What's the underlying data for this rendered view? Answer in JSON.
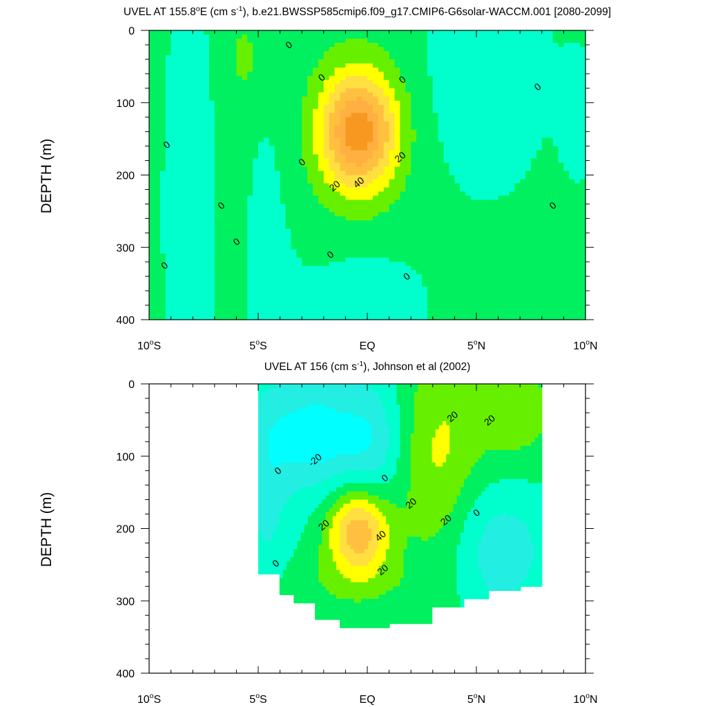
{
  "chart_data": [
    {
      "type": "contour",
      "title": "UVEL AT 155.8°E (cm s-1), b.e21.BWSSP585cmip6.f09_g17.CMIP6-G6solar-WACCM.001 [2080-2099]",
      "title_parts": [
        "UVEL AT 155.8",
        "o",
        "E (cm s",
        "-1",
        "), b.e21.BWSSP585cmip6.f09_g17.CMIP6-G6solar-WACCM.001 [2080-2099]"
      ],
      "ylabel": "DEPTH (m)",
      "xlabel": "",
      "xlim": [
        -10,
        10
      ],
      "ylim": [
        0,
        400
      ],
      "y_inverted": true,
      "x_ticks": [
        -10,
        -5,
        0,
        5,
        10
      ],
      "x_tick_labels": [
        "10°S",
        "5°S",
        "EQ",
        "5°N",
        "10°N"
      ],
      "y_ticks": [
        0,
        100,
        200,
        300,
        400
      ],
      "y_tick_labels": [
        "0",
        "100",
        "200",
        "300",
        "400"
      ],
      "contour_interval": 10,
      "core": {
        "lat": -0.4,
        "depth": 140,
        "max_speed": 60
      },
      "contour_labels": [
        {
          "text": "0",
          "lat": -3.6,
          "depth": 20
        },
        {
          "text": "0",
          "lat": -2.1,
          "depth": 65
        },
        {
          "text": "0",
          "lat": 1.6,
          "depth": 68
        },
        {
          "text": "0",
          "lat": 7.8,
          "depth": 78
        },
        {
          "text": "0",
          "lat": -9.2,
          "depth": 158
        },
        {
          "text": "0",
          "lat": -3.0,
          "depth": 182
        },
        {
          "text": "0",
          "lat": -6.7,
          "depth": 242
        },
        {
          "text": "0",
          "lat": 8.5,
          "depth": 242
        },
        {
          "text": "0",
          "lat": -6.0,
          "depth": 292
        },
        {
          "text": "0",
          "lat": -9.3,
          "depth": 325
        },
        {
          "text": "0",
          "lat": -1.7,
          "depth": 310
        },
        {
          "text": "0",
          "lat": 1.8,
          "depth": 340
        },
        {
          "text": "20",
          "lat": 1.5,
          "depth": 175
        },
        {
          "text": "20",
          "lat": -1.5,
          "depth": 215
        },
        {
          "text": "40",
          "lat": -0.4,
          "depth": 210
        }
      ]
    },
    {
      "type": "contour",
      "title": "UVEL AT 156 (cm s-1), Johnson et al (2002)",
      "title_parts": [
        "UVEL AT 156 (cm s",
        "-1",
        "), Johnson et al (2002)"
      ],
      "ylabel": "DEPTH (m)",
      "xlabel": "",
      "xlim": [
        -10,
        10
      ],
      "ylim": [
        0,
        400
      ],
      "y_inverted": true,
      "x_ticks": [
        -10,
        -5,
        0,
        5,
        10
      ],
      "x_tick_labels": [
        "10°S",
        "5°S",
        "EQ",
        "5°N",
        "10°N"
      ],
      "y_ticks": [
        0,
        100,
        200,
        300,
        400
      ],
      "y_tick_labels": [
        "0",
        "100",
        "200",
        "300",
        "400"
      ],
      "contour_interval": 10,
      "data_extent": {
        "lat_min": -5,
        "lat_max": 8
      },
      "core": {
        "lat": -0.4,
        "depth": 205,
        "max_speed": 50
      },
      "contour_labels": [
        {
          "text": "-20",
          "lat": -2.4,
          "depth": 105
        },
        {
          "text": "0",
          "lat": -4.1,
          "depth": 120
        },
        {
          "text": "0",
          "lat": 0.8,
          "depth": 130
        },
        {
          "text": "20",
          "lat": 3.9,
          "depth": 45
        },
        {
          "text": "20",
          "lat": 5.6,
          "depth": 50
        },
        {
          "text": "20",
          "lat": 2.0,
          "depth": 165
        },
        {
          "text": "20",
          "lat": 3.6,
          "depth": 188
        },
        {
          "text": "20",
          "lat": -2.0,
          "depth": 195
        },
        {
          "text": "40",
          "lat": 0.6,
          "depth": 210
        },
        {
          "text": "0",
          "lat": 5.0,
          "depth": 178
        },
        {
          "text": "20",
          "lat": 0.7,
          "depth": 257
        },
        {
          "text": "0",
          "lat": -4.2,
          "depth": 248
        }
      ]
    }
  ],
  "colors": {
    "level_minus30": "#00ffff",
    "level_minus20": "#22eee2",
    "level_minus10": "#00ffcc",
    "level_0": "#00f060",
    "level_10": "#66f000",
    "level_20": "#ffff00",
    "level_30": "#ffe040",
    "level_40": "#ffc040",
    "level_50": "#ffb040",
    "level_60": "#f89820",
    "contour_line": "#000000",
    "frame": "#000000",
    "background": "#ffffff"
  }
}
